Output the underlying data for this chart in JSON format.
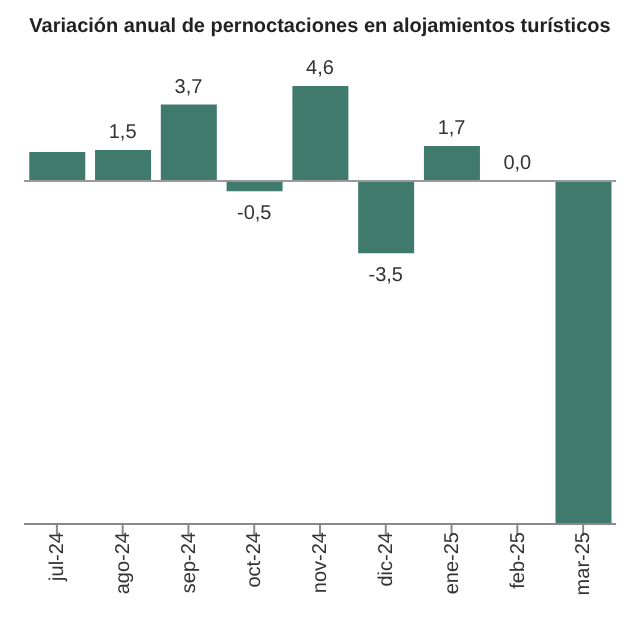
{
  "chart_data": {
    "type": "bar",
    "title": "Variación anual de pernoctaciones en alojamientos turísticos",
    "categories": [
      "jul-24",
      "ago-24",
      "sep-24",
      "oct-24",
      "nov-24",
      "dic-24",
      "ene-25",
      "feb-25",
      "mar-25"
    ],
    "values": [
      1.4,
      1.5,
      3.7,
      -0.5,
      4.6,
      -3.5,
      1.7,
      0.0,
      -16.6
    ],
    "value_labels": [
      null,
      "1,5",
      "3,7",
      "-0,5",
      "4,6",
      "-3,5",
      "1,7",
      "0,0",
      null
    ],
    "color": "#3f7a6d"
  }
}
